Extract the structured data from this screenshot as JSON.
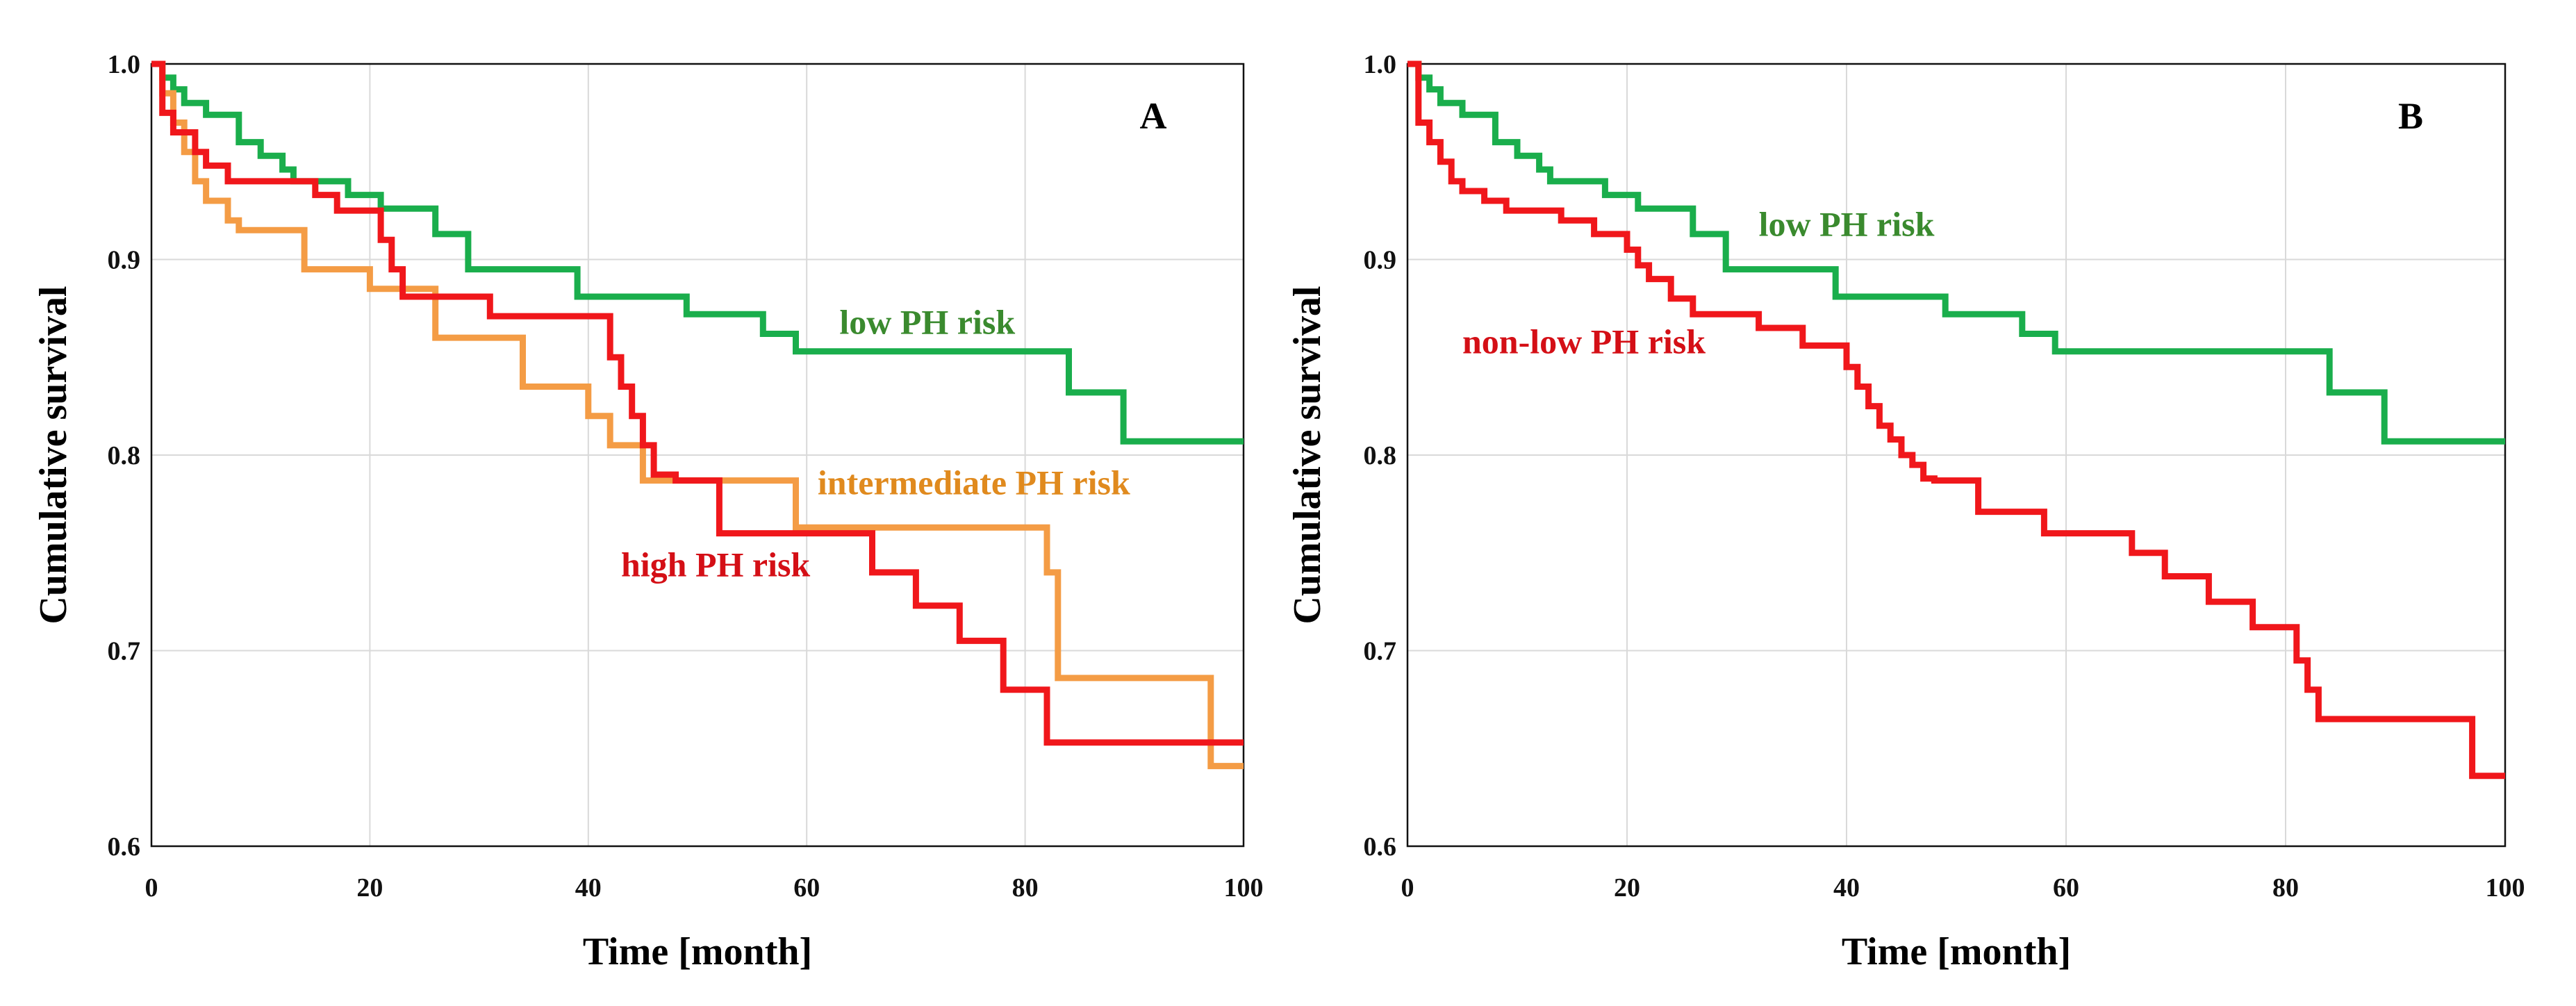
{
  "chart_data": [
    {
      "panel": "A",
      "type": "line",
      "step": true,
      "xlabel": "Time [month]",
      "ylabel": "Cumulative survival",
      "xlim": [
        0,
        100
      ],
      "ylim": [
        0.6,
        1.0
      ],
      "xticks": [
        0,
        20,
        40,
        60,
        80,
        100
      ],
      "yticks": [
        0.6,
        0.7,
        0.8,
        0.9,
        1.0
      ],
      "ytick_labels": [
        "0.6",
        "0.7",
        "0.8",
        "0.9",
        "1.0"
      ],
      "grid": true,
      "series": [
        {
          "name": "low PH risk",
          "color": "#1aae4c",
          "label_color": "#3a8a2e",
          "x": [
            0,
            1,
            2,
            3,
            5,
            8,
            10,
            12,
            13,
            18,
            21,
            26,
            29,
            39,
            49,
            56,
            59,
            84,
            89,
            100
          ],
          "y": [
            1.0,
            0.993,
            0.987,
            0.98,
            0.974,
            0.96,
            0.953,
            0.946,
            0.94,
            0.933,
            0.926,
            0.913,
            0.895,
            0.881,
            0.872,
            0.862,
            0.853,
            0.832,
            0.807,
            0.807
          ],
          "label_at": [
            63,
            0.862
          ]
        },
        {
          "name": "intermediate PH risk",
          "color": "#f49c45",
          "label_color": "#e08a1e",
          "x": [
            0,
            1,
            2,
            3,
            4,
            5,
            7,
            8,
            14,
            20,
            26,
            34,
            40,
            42,
            45,
            59,
            82,
            83,
            97,
            100
          ],
          "y": [
            1.0,
            0.985,
            0.97,
            0.955,
            0.94,
            0.93,
            0.92,
            0.915,
            0.895,
            0.885,
            0.86,
            0.835,
            0.82,
            0.805,
            0.787,
            0.763,
            0.74,
            0.686,
            0.641,
            0.641
          ],
          "label_at": [
            61,
            0.78
          ]
        },
        {
          "name": "high PH risk",
          "color": "#f0171b",
          "label_color": "#d40f16",
          "x": [
            0,
            1,
            2,
            4,
            5,
            7,
            10,
            15,
            17,
            20,
            21,
            22,
            23,
            31,
            36,
            42,
            43,
            44,
            45,
            46,
            48,
            52,
            66,
            70,
            74,
            78,
            82,
            100
          ],
          "y": [
            1.0,
            0.975,
            0.965,
            0.955,
            0.948,
            0.94,
            0.94,
            0.933,
            0.925,
            0.925,
            0.91,
            0.895,
            0.881,
            0.871,
            0.871,
            0.85,
            0.835,
            0.82,
            0.805,
            0.79,
            0.787,
            0.76,
            0.74,
            0.723,
            0.705,
            0.68,
            0.653,
            0.653
          ],
          "label_at": [
            43,
            0.738
          ]
        }
      ]
    },
    {
      "panel": "B",
      "type": "line",
      "step": true,
      "xlabel": "Time [month]",
      "ylabel": "Cumulative survival",
      "xlim": [
        0,
        100
      ],
      "ylim": [
        0.6,
        1.0
      ],
      "xticks": [
        0,
        20,
        40,
        60,
        80,
        100
      ],
      "yticks": [
        0.6,
        0.7,
        0.8,
        0.9,
        1.0
      ],
      "ytick_labels": [
        "0.6",
        "0.7",
        "0.8",
        "0.9",
        "1.0"
      ],
      "grid": true,
      "series": [
        {
          "name": "low PH risk",
          "color": "#1aae4c",
          "label_color": "#3a8a2e",
          "x": [
            0,
            1,
            2,
            3,
            5,
            8,
            10,
            12,
            13,
            18,
            21,
            26,
            29,
            39,
            49,
            56,
            59,
            84,
            89,
            100
          ],
          "y": [
            1.0,
            0.993,
            0.987,
            0.98,
            0.974,
            0.96,
            0.953,
            0.946,
            0.94,
            0.933,
            0.926,
            0.913,
            0.895,
            0.881,
            0.872,
            0.862,
            0.853,
            0.832,
            0.807,
            0.807
          ],
          "label_at": [
            32,
            0.912
          ]
        },
        {
          "name": "non-low PH risk",
          "color": "#f0171b",
          "label_color": "#d40f16",
          "x": [
            0,
            1,
            2,
            3,
            4,
            5,
            7,
            9,
            14,
            17,
            20,
            21,
            22,
            24,
            26,
            32,
            36,
            40,
            41,
            42,
            43,
            44,
            45,
            46,
            47,
            48,
            52,
            58,
            66,
            69,
            73,
            77,
            81,
            82,
            83,
            97,
            100
          ],
          "y": [
            1.0,
            0.97,
            0.96,
            0.95,
            0.94,
            0.935,
            0.93,
            0.925,
            0.92,
            0.913,
            0.905,
            0.897,
            0.89,
            0.88,
            0.872,
            0.865,
            0.856,
            0.845,
            0.835,
            0.825,
            0.815,
            0.808,
            0.8,
            0.795,
            0.788,
            0.787,
            0.771,
            0.76,
            0.75,
            0.738,
            0.725,
            0.712,
            0.695,
            0.68,
            0.665,
            0.636,
            0.636
          ],
          "label_at": [
            5,
            0.852
          ]
        }
      ]
    }
  ]
}
